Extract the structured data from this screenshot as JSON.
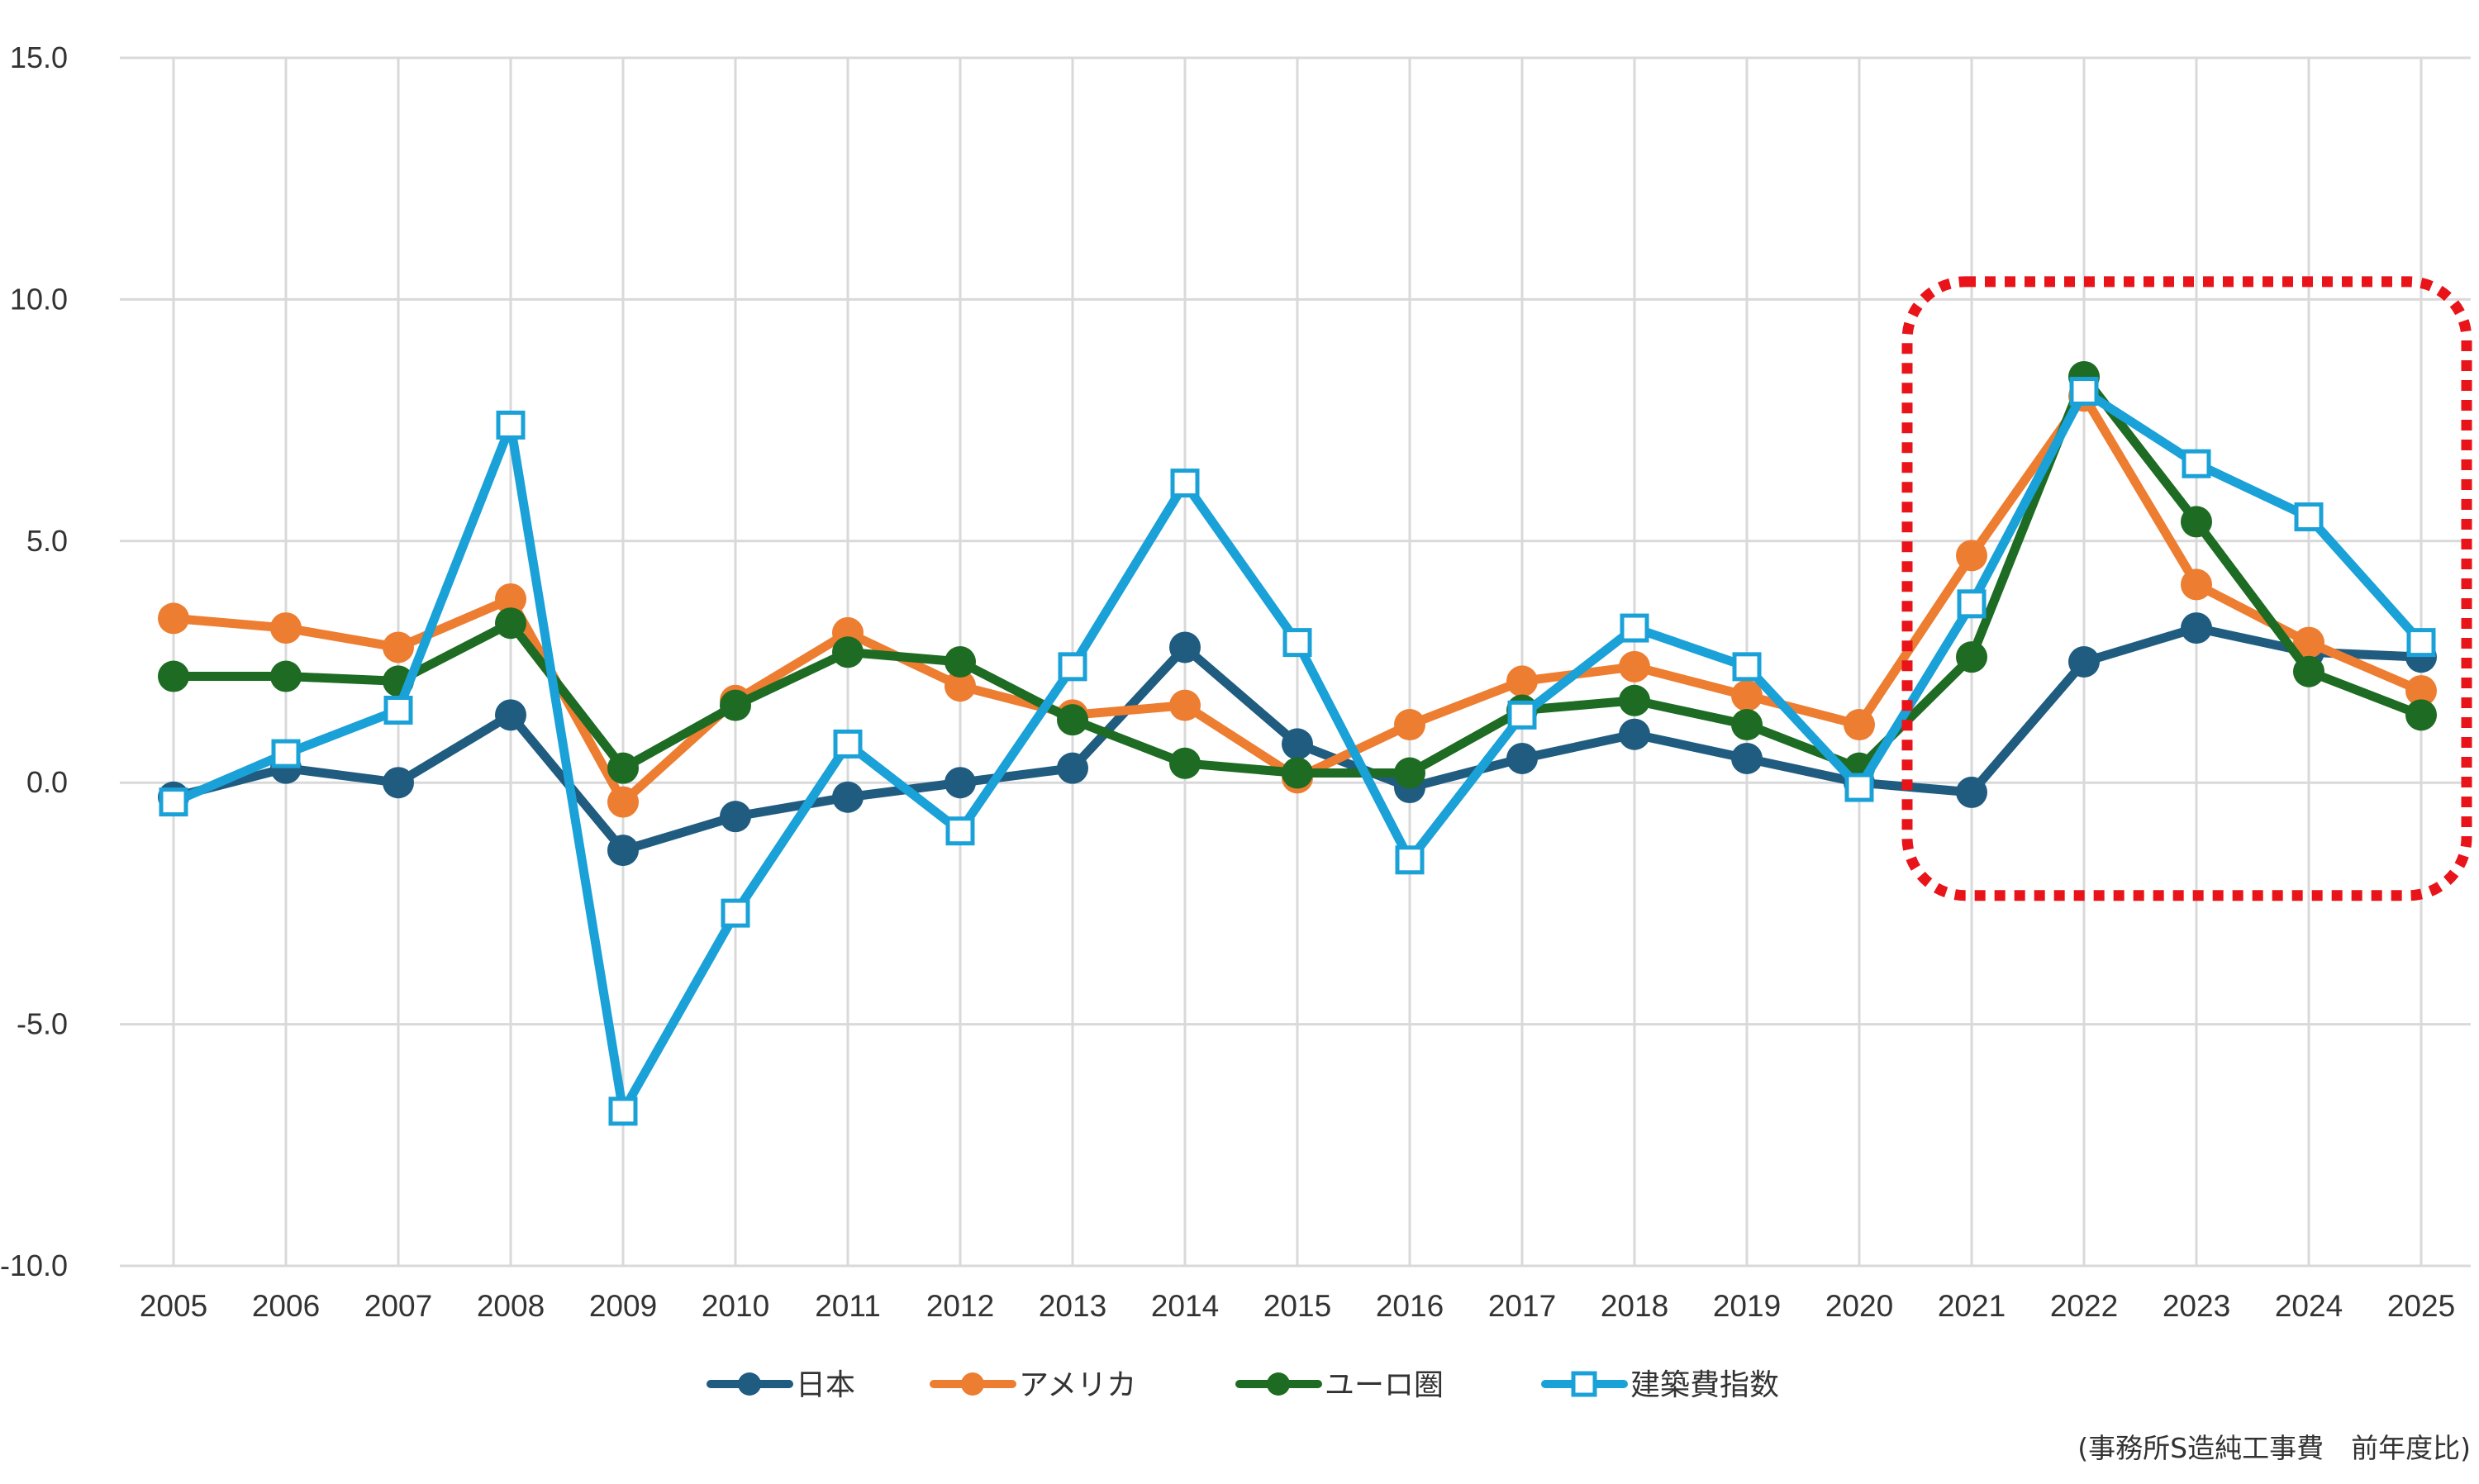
{
  "chart_data": {
    "type": "line",
    "title": "",
    "xlabel": "",
    "ylabel": "",
    "x": [
      "2005",
      "2006",
      "2007",
      "2008",
      "2009",
      "2010",
      "2011",
      "2012",
      "2013",
      "2014",
      "2015",
      "2016",
      "2017",
      "2018",
      "2019",
      "2020",
      "2021",
      "2022",
      "2023",
      "2024",
      "2025"
    ],
    "ylim": [
      -10,
      15
    ],
    "yticks": [
      "15.0",
      "10.0",
      "5.0",
      "0.0",
      "-5.0",
      "-10.0"
    ],
    "ytick_values": [
      15,
      10,
      5,
      0,
      -5,
      -10
    ],
    "grid": true,
    "legend_position": "bottom",
    "series": [
      {
        "name": "日本",
        "color": "#1f5c80",
        "marker": "circle",
        "values": [
          -0.3,
          0.3,
          0.0,
          1.4,
          -1.4,
          -0.7,
          -0.3,
          0.0,
          0.3,
          2.8,
          0.8,
          -0.1,
          0.5,
          1.0,
          0.5,
          0.0,
          -0.2,
          2.5,
          3.2,
          2.7,
          2.6
        ]
      },
      {
        "name": "アメリカ",
        "color": "#ed7d31",
        "marker": "circle",
        "values": [
          3.4,
          3.2,
          2.8,
          3.8,
          -0.4,
          1.7,
          3.1,
          2.0,
          1.4,
          1.6,
          0.1,
          1.2,
          2.1,
          2.4,
          1.8,
          1.2,
          4.7,
          8.0,
          4.1,
          2.9,
          1.9
        ]
      },
      {
        "name": "ユーロ圏",
        "color": "#1e6b23",
        "marker": "circle",
        "values": [
          2.2,
          2.2,
          2.1,
          3.3,
          0.3,
          1.6,
          2.7,
          2.5,
          1.3,
          0.4,
          0.2,
          0.2,
          1.5,
          1.7,
          1.2,
          0.3,
          2.6,
          8.4,
          5.4,
          2.3,
          1.4
        ]
      },
      {
        "name": "建築費指数",
        "color": "#1aa1d8",
        "marker": "square",
        "values": [
          -0.4,
          0.6,
          1.5,
          7.4,
          -6.8,
          -2.7,
          0.8,
          -1.0,
          2.4,
          6.2,
          2.9,
          -1.6,
          1.4,
          3.2,
          2.4,
          -0.1,
          3.7,
          8.1,
          6.6,
          5.5,
          2.9
        ]
      }
    ],
    "highlight": {
      "from": "2021",
      "to": "2025",
      "color": "#e8141a",
      "style": "dotted"
    },
    "note": "(事務所S造純工事費　前年度比)"
  }
}
